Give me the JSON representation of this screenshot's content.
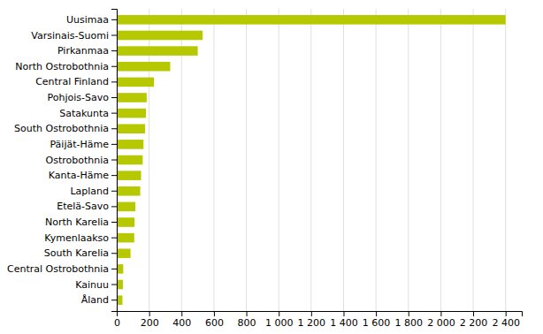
{
  "chart_data": {
    "type": "bar",
    "orientation": "horizontal",
    "categories": [
      "Uusimaa",
      "Varsinais-Suomi",
      "Pirkanmaa",
      "North Ostrobothnia",
      "Central Finland",
      "Pohjois-Savo",
      "Satakunta",
      "South Ostrobothnia",
      "Päijät-Häme",
      "Ostrobothnia",
      "Kanta-Häme",
      "Lapland",
      "Etelä-Savo",
      "North Karelia",
      "Kymenlaakso",
      "South Karelia",
      "Central Ostrobothnia",
      "Kainuu",
      "Åland"
    ],
    "values": [
      2400,
      530,
      500,
      330,
      230,
      185,
      180,
      175,
      165,
      160,
      150,
      145,
      115,
      110,
      108,
      85,
      40,
      38,
      35
    ],
    "color": "#b5c800",
    "xlim": [
      0,
      2500
    ],
    "xticks": [
      0,
      200,
      400,
      600,
      800,
      {
        "value": 1000,
        "label": "1 000"
      },
      {
        "value": 1200,
        "label": "1 200"
      },
      {
        "value": 1400,
        "label": "1 400"
      },
      {
        "value": 1600,
        "label": "1 600"
      },
      {
        "value": 1800,
        "label": "1 800"
      },
      {
        "value": 2000,
        "label": "2 000"
      },
      {
        "value": 2200,
        "label": "2 200"
      },
      {
        "value": 2400,
        "label": "2 400"
      }
    ],
    "grid": true
  }
}
